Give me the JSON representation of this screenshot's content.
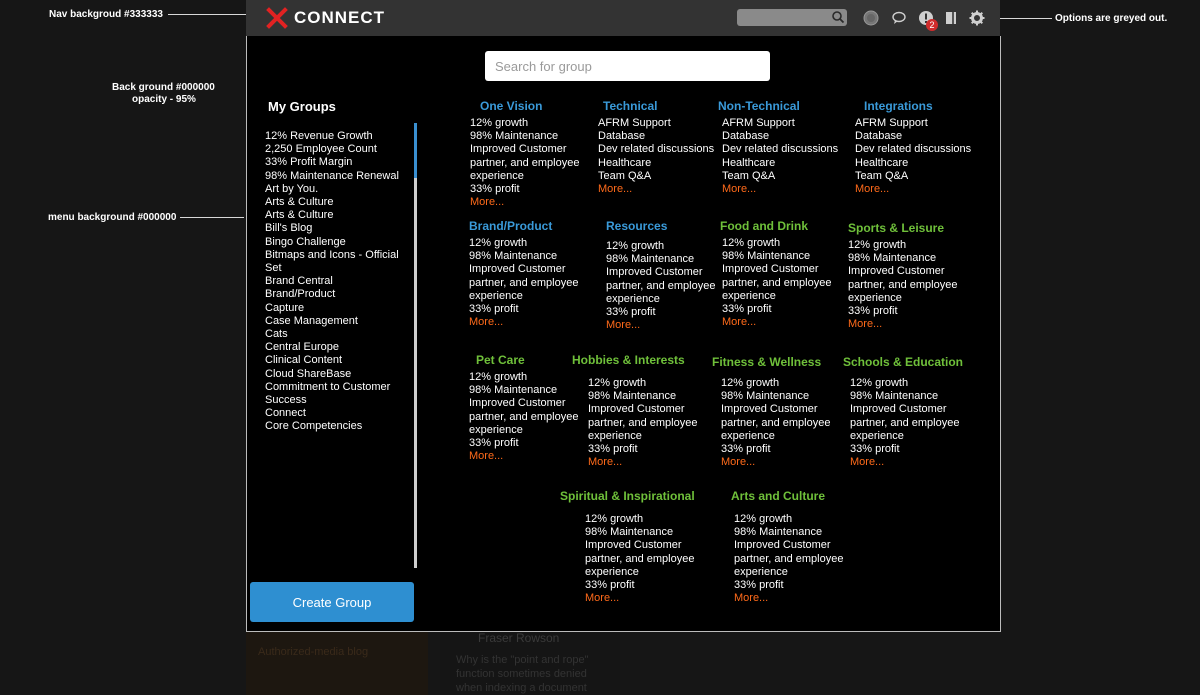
{
  "colors": {
    "accent_blue": "#3a9ad9",
    "accent_green": "#6fc03a",
    "more_orange": "#ff6a1a",
    "nav_bg": "#333333",
    "button_blue": "#2e8fd1"
  },
  "annotations": {
    "nav_background": "Nav backgroud #333333",
    "background_line1": "Back ground #000000",
    "background_line2": "opacity - 95%",
    "menu_background": "menu background #000000",
    "options_greyed": "Options are greyed out."
  },
  "nav": {
    "brand": "CONNECT",
    "logo_icon": "x-logo-icon",
    "icons": [
      "search-icon",
      "globe-icon",
      "chat-icon",
      "notifications-icon",
      "bookmark-icon",
      "gear-icon"
    ],
    "notification_count": "2"
  },
  "search": {
    "placeholder": "Search for group"
  },
  "my_groups": {
    "title": "My Groups",
    "items": [
      "12% Revenue Growth",
      "2,250 Employee Count",
      "33% Profit Margin",
      "98% Maintenance Renewal",
      "Art by You.",
      "Arts & Culture",
      "Arts & Culture",
      "Bill's Blog",
      "Bingo Challenge",
      "Bitmaps and Icons - Official Set",
      "Brand Central",
      "Brand/Product",
      "Capture",
      "Case Management",
      "Cats",
      "Central Europe",
      "Clinical Content",
      "Cloud ShareBase",
      "Commitment to Customer Success",
      "Connect",
      "Core Competencies"
    ],
    "create_button": "Create Group"
  },
  "groups": [
    {
      "title": "One Vision",
      "color": "blue",
      "items": [
        "12% growth",
        "98% Maintenance",
        "Improved Customer",
        "partner, and employee",
        "experience",
        "33% profit"
      ],
      "more": "More..."
    },
    {
      "title": "Technical",
      "color": "blue",
      "items": [
        "AFRM Support",
        "Database",
        "Dev related discussions",
        "Healthcare",
        "Team Q&A"
      ],
      "more": "More..."
    },
    {
      "title": "Non-Technical",
      "color": "blue",
      "items": [
        "AFRM Support",
        "Database",
        "Dev related discussions",
        "Healthcare",
        "Team Q&A"
      ],
      "more": "More..."
    },
    {
      "title": "Integrations",
      "color": "blue",
      "items": [
        "AFRM Support",
        "Database",
        "Dev related discussions",
        "Healthcare",
        "Team Q&A"
      ],
      "more": "More..."
    },
    {
      "title": "Brand/Product",
      "color": "blue",
      "items": [
        "12% growth",
        "98% Maintenance",
        "Improved Customer",
        "partner, and employee",
        "experience",
        "33% profit"
      ],
      "more": "More..."
    },
    {
      "title": "Resources",
      "color": "blue",
      "items": [
        "12% growth",
        "98% Maintenance",
        "Improved Customer",
        "partner, and employee",
        "experience",
        "33% profit"
      ],
      "more": "More..."
    },
    {
      "title": "Food and Drink",
      "color": "green",
      "items": [
        "12% growth",
        "98% Maintenance",
        "Improved Customer",
        "partner, and employee",
        "experience",
        "33% profit"
      ],
      "more": "More..."
    },
    {
      "title": "Sports & Leisure",
      "color": "green",
      "items": [
        "12% growth",
        "98% Maintenance",
        "Improved Customer",
        "partner, and employee",
        "experience",
        "33% profit"
      ],
      "more": "More..."
    },
    {
      "title": "Pet Care",
      "color": "green",
      "items": [
        "12% growth",
        "98% Maintenance",
        "Improved Customer",
        "partner, and employee",
        "experience",
        "33% profit"
      ],
      "more": "More..."
    },
    {
      "title": "Hobbies & Interests",
      "color": "green",
      "items": [
        "12% growth",
        "98% Maintenance",
        "Improved Customer",
        "partner, and employee",
        "experience",
        "33% profit"
      ],
      "more": "More..."
    },
    {
      "title": "Fitness & Wellness",
      "color": "green",
      "items": [
        "12% growth",
        "98% Maintenance",
        "Improved Customer",
        "partner, and employee",
        "experience",
        "33% profit"
      ],
      "more": "More..."
    },
    {
      "title": "Schools & Education",
      "color": "green",
      "items": [
        "12% growth",
        "98% Maintenance",
        "Improved Customer",
        "partner, and employee",
        "experience",
        "33% profit"
      ],
      "more": "More..."
    },
    {
      "title": "Spiritual & Inspirational",
      "color": "green",
      "items": [
        "12% growth",
        "98% Maintenance",
        "Improved Customer",
        "partner, and employee",
        "experience",
        "33% profit"
      ],
      "more": "More..."
    },
    {
      "title": "Arts and Culture",
      "color": "green",
      "items": [
        "12% growth",
        "98% Maintenance",
        "Improved Customer",
        "partner, and employee",
        "experience",
        "33% profit"
      ],
      "more": "More..."
    }
  ],
  "background_page": {
    "post_author": "Fraser Rowson",
    "post_excerpt": "Why is the \"point and rope\" function sometimes denied when indexing a document in...",
    "tag": "Authorized-media blog"
  }
}
